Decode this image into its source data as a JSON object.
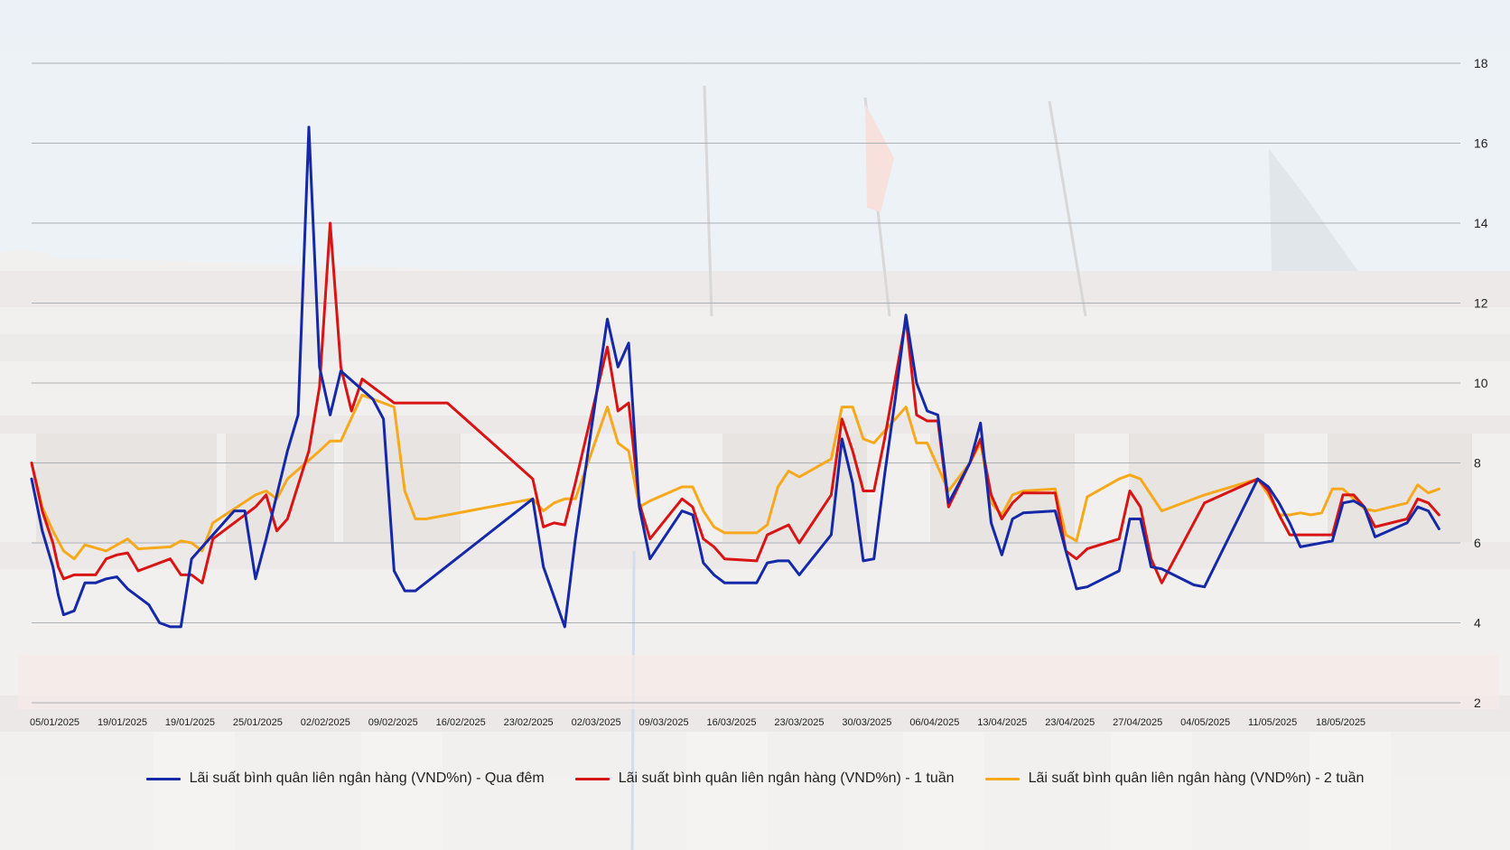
{
  "chart_data": {
    "type": "line",
    "title": "",
    "xlabel": "",
    "ylabel": "",
    "ylim": [
      2,
      18
    ],
    "yticks": [
      2,
      4,
      6,
      8,
      10,
      12,
      14,
      16,
      18
    ],
    "y_axis_position": "right",
    "grid": true,
    "legend_position": "bottom",
    "x_tick_labels": [
      "05/01/2025",
      "19/01/2025",
      "19/01/2025",
      "25/01/2025",
      "02/02/2025",
      "09/02/2025",
      "16/02/2025",
      "23/02/2025",
      "02/03/2025",
      "09/03/2025",
      "16/03/2025",
      "23/03/2025",
      "30/03/2025",
      "06/04/2025",
      "13/04/2025",
      "23/04/2025",
      "27/04/2025",
      "04/05/2025",
      "11/05/2025",
      "18/05/2025"
    ],
    "colors": {
      "overnight": "#1428a8",
      "one_week": "#d81414",
      "two_week": "#f7a81b"
    },
    "series": [
      {
        "name": "Lãi suất bình quân liên ngân hàng (VND%n) - Qua đêm",
        "color": "#1428a8",
        "points": [
          [
            0,
            7.6
          ],
          [
            1,
            6.3
          ],
          [
            2,
            5.4
          ],
          [
            2.5,
            4.7
          ],
          [
            3,
            4.2
          ],
          [
            4,
            4.3
          ],
          [
            5,
            5.0
          ],
          [
            6,
            5.0
          ],
          [
            7,
            5.1
          ],
          [
            8,
            5.15
          ],
          [
            9,
            4.85
          ],
          [
            11,
            4.45
          ],
          [
            12,
            4.0
          ],
          [
            13,
            3.9
          ],
          [
            14,
            3.9
          ],
          [
            15,
            5.6
          ],
          [
            19,
            6.8
          ],
          [
            20,
            6.8
          ],
          [
            21,
            5.1
          ],
          [
            22,
            6.1
          ],
          [
            24,
            8.3
          ],
          [
            25,
            9.2
          ],
          [
            26,
            16.4
          ],
          [
            27,
            10.4
          ],
          [
            28,
            9.2
          ],
          [
            29,
            10.3
          ],
          [
            32,
            9.6
          ],
          [
            33,
            9.1
          ],
          [
            34,
            5.3
          ],
          [
            35,
            4.8
          ],
          [
            36,
            4.8
          ],
          [
            47,
            7.1
          ],
          [
            48,
            5.4
          ],
          [
            50,
            3.9
          ],
          [
            51,
            6.1
          ],
          [
            54,
            11.6
          ],
          [
            55,
            10.4
          ],
          [
            56,
            11.0
          ],
          [
            57,
            6.9
          ],
          [
            58,
            5.6
          ],
          [
            61,
            6.8
          ],
          [
            62,
            6.7
          ],
          [
            63,
            5.5
          ],
          [
            64,
            5.2
          ],
          [
            65,
            5.0
          ],
          [
            68,
            5.0
          ],
          [
            69,
            5.5
          ],
          [
            70,
            5.55
          ],
          [
            71,
            5.55
          ],
          [
            72,
            5.2
          ],
          [
            75,
            6.2
          ],
          [
            76,
            8.6
          ],
          [
            77,
            7.5
          ],
          [
            78,
            5.55
          ],
          [
            79,
            5.6
          ],
          [
            80,
            7.7
          ],
          [
            81,
            9.6
          ],
          [
            82,
            11.7
          ],
          [
            83,
            10.0
          ],
          [
            84,
            9.3
          ],
          [
            85,
            9.2
          ],
          [
            86,
            7.0
          ],
          [
            88,
            8.0
          ],
          [
            89,
            9.0
          ],
          [
            90,
            6.5
          ],
          [
            91,
            5.7
          ],
          [
            92,
            6.6
          ],
          [
            93,
            6.75
          ],
          [
            96,
            6.8
          ],
          [
            97,
            5.8
          ],
          [
            98,
            4.85
          ],
          [
            99,
            4.9
          ],
          [
            102,
            5.3
          ],
          [
            103,
            6.6
          ],
          [
            104,
            6.6
          ],
          [
            105,
            5.4
          ],
          [
            106,
            5.35
          ],
          [
            109,
            4.95
          ],
          [
            110,
            4.9
          ],
          [
            115,
            7.6
          ],
          [
            116,
            7.4
          ],
          [
            117,
            7.0
          ],
          [
            118,
            6.5
          ],
          [
            119,
            5.9
          ],
          [
            122,
            6.05
          ],
          [
            123,
            7.0
          ],
          [
            124,
            7.05
          ],
          [
            125,
            6.9
          ],
          [
            126,
            6.15
          ],
          [
            129,
            6.5
          ],
          [
            130,
            6.9
          ],
          [
            131,
            6.8
          ],
          [
            132,
            6.35
          ]
        ]
      },
      {
        "name": "Lãi suất bình quân liên ngân hàng (VND%n) - 1 tuần",
        "color": "#d81414",
        "points": [
          [
            0,
            8.0
          ],
          [
            1,
            6.8
          ],
          [
            2,
            6.0
          ],
          [
            2.5,
            5.4
          ],
          [
            3,
            5.1
          ],
          [
            4,
            5.2
          ],
          [
            5,
            5.2
          ],
          [
            6,
            5.2
          ],
          [
            7,
            5.6
          ],
          [
            8,
            5.7
          ],
          [
            9,
            5.75
          ],
          [
            10,
            5.3
          ],
          [
            13,
            5.6
          ],
          [
            14,
            5.2
          ],
          [
            15,
            5.2
          ],
          [
            16,
            5.0
          ],
          [
            17,
            6.1
          ],
          [
            21,
            6.9
          ],
          [
            22,
            7.2
          ],
          [
            23,
            6.3
          ],
          [
            24,
            6.6
          ],
          [
            26,
            8.3
          ],
          [
            27,
            9.9
          ],
          [
            28,
            14.0
          ],
          [
            29,
            10.4
          ],
          [
            30,
            9.3
          ],
          [
            31,
            10.1
          ],
          [
            34,
            9.5
          ],
          [
            39,
            9.5
          ],
          [
            47,
            7.6
          ],
          [
            48,
            6.4
          ],
          [
            49,
            6.5
          ],
          [
            50,
            6.45
          ],
          [
            51,
            7.5
          ],
          [
            54,
            10.9
          ],
          [
            55,
            9.3
          ],
          [
            56,
            9.5
          ],
          [
            57,
            7.0
          ],
          [
            58,
            6.1
          ],
          [
            61,
            7.1
          ],
          [
            62,
            6.9
          ],
          [
            63,
            6.1
          ],
          [
            64,
            5.9
          ],
          [
            65,
            5.6
          ],
          [
            68,
            5.55
          ],
          [
            69,
            6.2
          ],
          [
            71,
            6.45
          ],
          [
            72,
            6.0
          ],
          [
            75,
            7.2
          ],
          [
            76,
            9.1
          ],
          [
            77,
            8.3
          ],
          [
            78,
            7.3
          ],
          [
            79,
            7.3
          ],
          [
            80,
            8.6
          ],
          [
            82,
            11.6
          ],
          [
            83,
            9.2
          ],
          [
            84,
            9.05
          ],
          [
            85,
            9.05
          ],
          [
            86,
            6.9
          ],
          [
            88,
            8.0
          ],
          [
            89,
            8.6
          ],
          [
            90,
            7.2
          ],
          [
            91,
            6.6
          ],
          [
            92,
            7.0
          ],
          [
            93,
            7.25
          ],
          [
            96,
            7.25
          ],
          [
            97,
            5.8
          ],
          [
            98,
            5.6
          ],
          [
            99,
            5.85
          ],
          [
            102,
            6.1
          ],
          [
            103,
            7.3
          ],
          [
            104,
            6.9
          ],
          [
            105,
            5.6
          ],
          [
            106,
            5.0
          ],
          [
            110,
            7.0
          ],
          [
            115,
            7.6
          ],
          [
            116,
            7.3
          ],
          [
            117,
            6.7
          ],
          [
            118,
            6.2
          ],
          [
            119,
            6.2
          ],
          [
            122,
            6.2
          ],
          [
            123,
            7.2
          ],
          [
            124,
            7.2
          ],
          [
            125,
            6.9
          ],
          [
            126,
            6.4
          ],
          [
            129,
            6.6
          ],
          [
            130,
            7.1
          ],
          [
            131,
            7.0
          ],
          [
            132,
            6.7
          ]
        ]
      },
      {
        "name": "Lãi suất bình quân liên ngân hàng (VND%n) - 2 tuần",
        "color": "#f7a81b",
        "points": [
          [
            0,
            8.0
          ],
          [
            1,
            6.9
          ],
          [
            2,
            6.3
          ],
          [
            3,
            5.8
          ],
          [
            4,
            5.6
          ],
          [
            5,
            5.95
          ],
          [
            7,
            5.8
          ],
          [
            9,
            6.1
          ],
          [
            10,
            5.85
          ],
          [
            13,
            5.9
          ],
          [
            14,
            6.05
          ],
          [
            15,
            6.0
          ],
          [
            16,
            5.8
          ],
          [
            17,
            6.5
          ],
          [
            21,
            7.2
          ],
          [
            22,
            7.3
          ],
          [
            23,
            7.1
          ],
          [
            24,
            7.6
          ],
          [
            27,
            8.3
          ],
          [
            28,
            8.55
          ],
          [
            29,
            8.55
          ],
          [
            31,
            9.7
          ],
          [
            34,
            9.4
          ],
          [
            35,
            7.3
          ],
          [
            36,
            6.6
          ],
          [
            37,
            6.6
          ],
          [
            47,
            7.1
          ],
          [
            48,
            6.8
          ],
          [
            49,
            7.0
          ],
          [
            50,
            7.1
          ],
          [
            51,
            7.1
          ],
          [
            54,
            9.4
          ],
          [
            55,
            8.5
          ],
          [
            56,
            8.3
          ],
          [
            57,
            6.9
          ],
          [
            58,
            7.05
          ],
          [
            61,
            7.4
          ],
          [
            62,
            7.4
          ],
          [
            63,
            6.8
          ],
          [
            64,
            6.4
          ],
          [
            65,
            6.25
          ],
          [
            68,
            6.25
          ],
          [
            69,
            6.45
          ],
          [
            70,
            7.4
          ],
          [
            71,
            7.8
          ],
          [
            72,
            7.65
          ],
          [
            75,
            8.1
          ],
          [
            76,
            9.4
          ],
          [
            77,
            9.4
          ],
          [
            78,
            8.6
          ],
          [
            79,
            8.5
          ],
          [
            82,
            9.4
          ],
          [
            83,
            8.5
          ],
          [
            84,
            8.5
          ],
          [
            86,
            7.3
          ],
          [
            88,
            8.0
          ],
          [
            89,
            8.5
          ],
          [
            90,
            7.0
          ],
          [
            91,
            6.7
          ],
          [
            92,
            7.2
          ],
          [
            93,
            7.3
          ],
          [
            96,
            7.35
          ],
          [
            97,
            6.2
          ],
          [
            98,
            6.05
          ],
          [
            99,
            7.15
          ],
          [
            102,
            7.6
          ],
          [
            103,
            7.7
          ],
          [
            104,
            7.6
          ],
          [
            105,
            7.2
          ],
          [
            106,
            6.8
          ],
          [
            110,
            7.2
          ],
          [
            115,
            7.6
          ],
          [
            116,
            7.2
          ],
          [
            117,
            6.7
          ],
          [
            118,
            6.7
          ],
          [
            119,
            6.75
          ],
          [
            120,
            6.7
          ],
          [
            121,
            6.75
          ],
          [
            122,
            7.35
          ],
          [
            123,
            7.35
          ],
          [
            124,
            7.1
          ],
          [
            125,
            6.85
          ],
          [
            126,
            6.8
          ],
          [
            129,
            7.0
          ],
          [
            130,
            7.45
          ],
          [
            131,
            7.25
          ],
          [
            132,
            7.35
          ]
        ]
      }
    ]
  }
}
